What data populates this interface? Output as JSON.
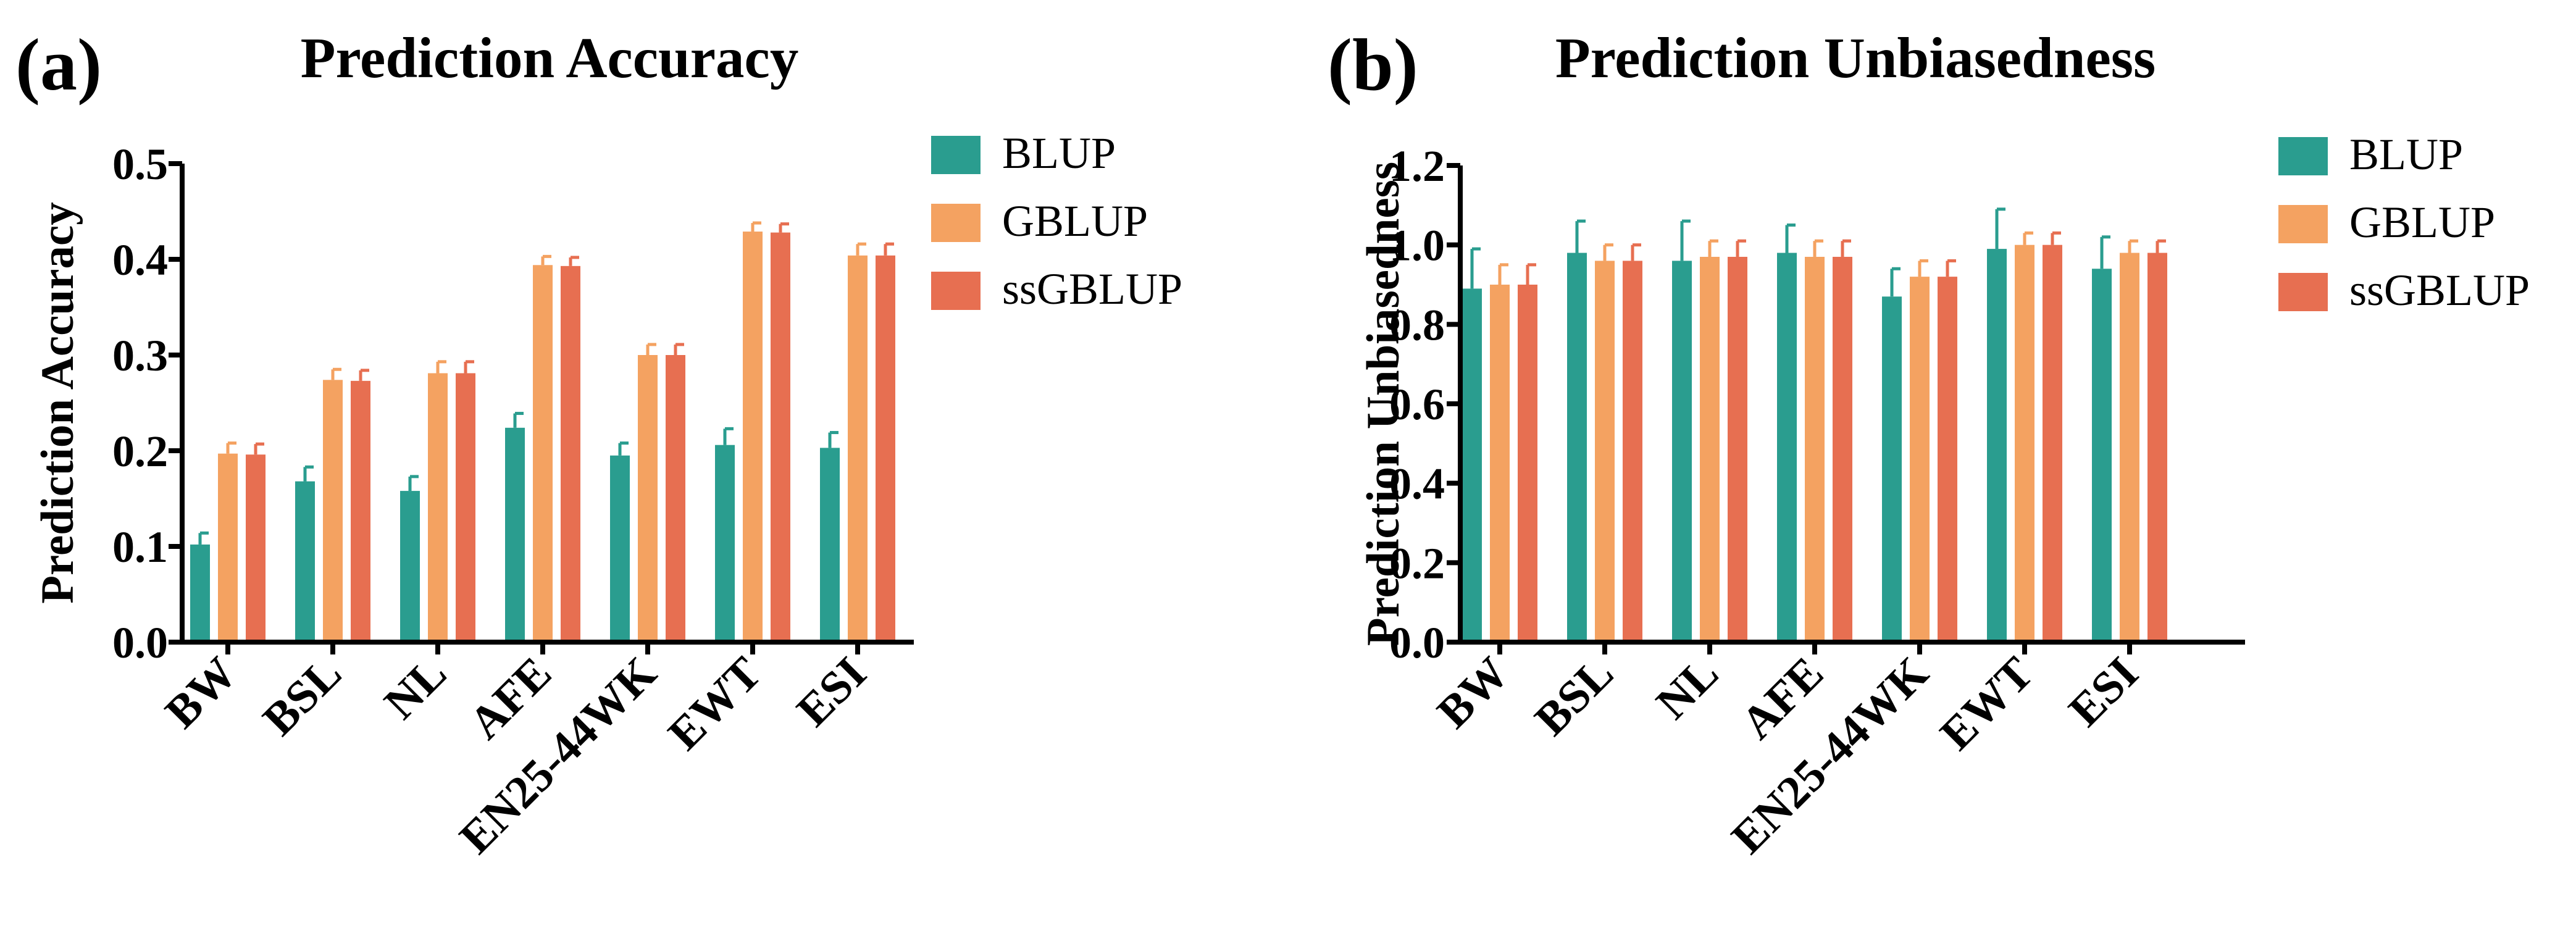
{
  "panels": [
    {
      "label": "(a)"
    },
    {
      "label": "(b)"
    }
  ],
  "chart_data": [
    {
      "type": "bar",
      "title": "Prediction Accuracy",
      "xlabel": "",
      "ylabel": "Prediction Accuracy",
      "ylim": [
        0,
        0.5
      ],
      "yticks": [
        0.0,
        0.1,
        0.2,
        0.3,
        0.4,
        0.5
      ],
      "ytick_labels": [
        "0.0",
        "0.1",
        "0.2",
        "0.3",
        "0.4",
        "0.5"
      ],
      "categories": [
        "BW",
        "BSL",
        "NL",
        "AFE",
        "EN25-44WK",
        "EWT",
        "ESI"
      ],
      "series": [
        {
          "name": "BLUP",
          "color": "#2a9d8f",
          "values": [
            0.102,
            0.168,
            0.158,
            0.224,
            0.195,
            0.206,
            0.203
          ],
          "errors": [
            0.012,
            0.015,
            0.015,
            0.015,
            0.013,
            0.017,
            0.016
          ]
        },
        {
          "name": "GBLUP",
          "color": "#f4a261",
          "values": [
            0.197,
            0.274,
            0.281,
            0.394,
            0.3,
            0.429,
            0.404
          ],
          "errors": [
            0.011,
            0.011,
            0.012,
            0.009,
            0.011,
            0.009,
            0.012
          ]
        },
        {
          "name": "ssGBLUP",
          "color": "#e76f51",
          "values": [
            0.196,
            0.273,
            0.281,
            0.393,
            0.3,
            0.428,
            0.404
          ],
          "errors": [
            0.011,
            0.011,
            0.012,
            0.009,
            0.011,
            0.009,
            0.012
          ]
        }
      ],
      "legend": "right",
      "grid": false
    },
    {
      "type": "bar",
      "title": "Prediction Unbiasedness",
      "xlabel": "",
      "ylabel": "Prediction Unbiasedness",
      "ylim": [
        0,
        1.2
      ],
      "yticks": [
        0.0,
        0.2,
        0.4,
        0.6,
        0.8,
        1.0,
        1.2
      ],
      "ytick_labels": [
        "0.0",
        "0.2",
        "0.4",
        "0.6",
        "0.8",
        "1.0",
        "1.2"
      ],
      "categories": [
        "BW",
        "BSL",
        "NL",
        "AFE",
        "EN25-44WK",
        "EWT",
        "ESI"
      ],
      "series": [
        {
          "name": "BLUP",
          "color": "#2a9d8f",
          "values": [
            0.89,
            0.98,
            0.96,
            0.98,
            0.87,
            0.99,
            0.94
          ],
          "errors": [
            0.1,
            0.08,
            0.1,
            0.07,
            0.07,
            0.1,
            0.08
          ]
        },
        {
          "name": "GBLUP",
          "color": "#f4a261",
          "values": [
            0.9,
            0.96,
            0.97,
            0.97,
            0.92,
            1.0,
            0.98
          ],
          "errors": [
            0.05,
            0.04,
            0.04,
            0.04,
            0.04,
            0.03,
            0.03
          ]
        },
        {
          "name": "ssGBLUP",
          "color": "#e76f51",
          "values": [
            0.9,
            0.96,
            0.97,
            0.97,
            0.92,
            1.0,
            0.98
          ],
          "errors": [
            0.05,
            0.04,
            0.04,
            0.04,
            0.04,
            0.03,
            0.03
          ]
        }
      ],
      "legend": "right",
      "grid": false
    }
  ]
}
